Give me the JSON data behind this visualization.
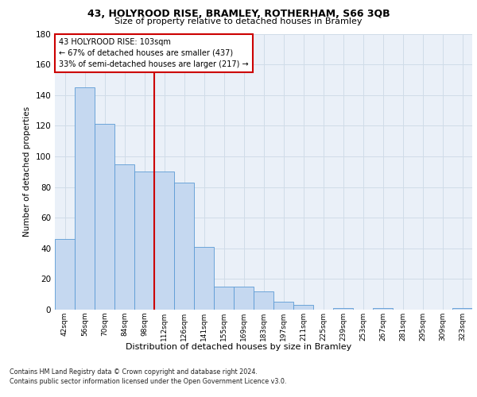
{
  "title1": "43, HOLYROOD RISE, BRAMLEY, ROTHERHAM, S66 3QB",
  "title2": "Size of property relative to detached houses in Bramley",
  "xlabel": "Distribution of detached houses by size in Bramley",
  "ylabel": "Number of detached properties",
  "categories": [
    "42sqm",
    "56sqm",
    "70sqm",
    "84sqm",
    "98sqm",
    "112sqm",
    "126sqm",
    "141sqm",
    "155sqm",
    "169sqm",
    "183sqm",
    "197sqm",
    "211sqm",
    "225sqm",
    "239sqm",
    "253sqm",
    "267sqm",
    "281sqm",
    "295sqm",
    "309sqm",
    "323sqm"
  ],
  "values": [
    46,
    145,
    121,
    95,
    90,
    90,
    83,
    41,
    15,
    15,
    12,
    5,
    3,
    0,
    1,
    0,
    1,
    0,
    0,
    0,
    1
  ],
  "bar_color": "#c5d8f0",
  "bar_edge_color": "#5b9bd5",
  "vline_x_idx": 4.5,
  "vline_color": "#cc0000",
  "annotation_title": "43 HOLYROOD RISE: 103sqm",
  "annotation_line1": "← 67% of detached houses are smaller (437)",
  "annotation_line2": "33% of semi-detached houses are larger (217) →",
  "annotation_box_color": "#cc0000",
  "ylim": [
    0,
    180
  ],
  "yticks": [
    0,
    20,
    40,
    60,
    80,
    100,
    120,
    140,
    160,
    180
  ],
  "grid_color": "#d0dce8",
  "background_color": "#eaf0f8",
  "footer1": "Contains HM Land Registry data © Crown copyright and database right 2024.",
  "footer2": "Contains public sector information licensed under the Open Government Licence v3.0."
}
